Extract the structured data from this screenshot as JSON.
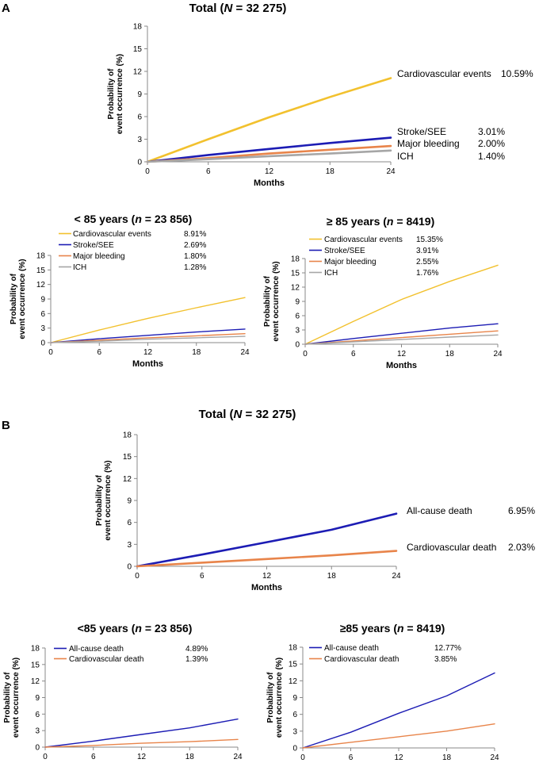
{
  "panel_labels": [
    "A",
    "B"
  ],
  "colors": {
    "cardiovascular_events": "#f2c12e",
    "stroke_see": "#1c1cb4",
    "major_bleeding": "#e8844a",
    "ich": "#a6a6a6",
    "all_cause_death": "#1c1cb4",
    "cardiovascular_death": "#e8844a"
  },
  "chart_data": [
    {
      "id": "A_total",
      "type": "line",
      "title": "Total (N = 32 275)",
      "title_parts": [
        "Total (",
        "N",
        " = 32 275)"
      ],
      "xlabel": "Months",
      "ylabel": [
        "Probability of",
        "event occurrence (%)"
      ],
      "xlim": [
        0,
        24
      ],
      "ylim": [
        0,
        18
      ],
      "xticks": [
        "0",
        "6",
        "12",
        "18",
        "24"
      ],
      "yticks": [
        "0",
        "3",
        "6",
        "9",
        "12",
        "15",
        "18"
      ],
      "series": [
        {
          "name": "Cardiovascular events",
          "value_label": "10.59%",
          "color_key": "cardiovascular_events",
          "x": [
            0,
            6,
            12,
            18,
            24
          ],
          "y": [
            0,
            3.0,
            5.9,
            8.6,
            11.1
          ]
        },
        {
          "name": "Stroke/SEE",
          "value_label": "3.01%",
          "color_key": "stroke_see",
          "x": [
            0,
            6,
            12,
            18,
            24
          ],
          "y": [
            0,
            0.9,
            1.7,
            2.5,
            3.2
          ]
        },
        {
          "name": "Major bleeding",
          "value_label": "2.00%",
          "color_key": "major_bleeding",
          "x": [
            0,
            6,
            12,
            18,
            24
          ],
          "y": [
            0,
            0.5,
            1.1,
            1.6,
            2.1
          ]
        },
        {
          "name": "ICH",
          "value_label": "1.40%",
          "color_key": "ich",
          "x": [
            0,
            6,
            12,
            18,
            24
          ],
          "y": [
            0,
            0.35,
            0.75,
            1.1,
            1.5
          ]
        }
      ]
    },
    {
      "id": "A_lt85",
      "type": "line",
      "title": "< 85 years (n = 23 856)",
      "title_parts": [
        "< 85 years (",
        "n",
        " = 23 856)"
      ],
      "xlabel": "Months",
      "ylabel": [
        "Probability of",
        "event occurrence (%)"
      ],
      "xlim": [
        0,
        24
      ],
      "ylim": [
        0,
        18
      ],
      "xticks": [
        "0",
        "6",
        "12",
        "18",
        "24"
      ],
      "yticks": [
        "0",
        "3",
        "6",
        "9",
        "12",
        "15",
        "18"
      ],
      "series": [
        {
          "name": "Cardiovascular events",
          "value_label": "8.91%",
          "color_key": "cardiovascular_events",
          "x": [
            0,
            6,
            12,
            18,
            24
          ],
          "y": [
            0,
            2.6,
            5.0,
            7.2,
            9.3
          ]
        },
        {
          "name": "Stroke/SEE",
          "value_label": "2.69%",
          "color_key": "stroke_see",
          "x": [
            0,
            6,
            12,
            18,
            24
          ],
          "y": [
            0,
            0.8,
            1.5,
            2.2,
            2.8
          ]
        },
        {
          "name": "Major bleeding",
          "value_label": "1.80%",
          "color_key": "major_bleeding",
          "x": [
            0,
            6,
            12,
            18,
            24
          ],
          "y": [
            0,
            0.5,
            1.0,
            1.4,
            1.85
          ]
        },
        {
          "name": "ICH",
          "value_label": "1.28%",
          "color_key": "ich",
          "x": [
            0,
            6,
            12,
            18,
            24
          ],
          "y": [
            0,
            0.3,
            0.7,
            1.0,
            1.3
          ]
        }
      ]
    },
    {
      "id": "A_ge85",
      "type": "line",
      "title": "≥ 85 years (n = 8419)",
      "title_parts": [
        "≥ 85 years (",
        "n",
        " = 8419)"
      ],
      "xlabel": "Months",
      "ylabel": [
        "Probability of",
        "event occurrence (%)"
      ],
      "xlim": [
        0,
        24
      ],
      "ylim": [
        0,
        18
      ],
      "xticks": [
        "0",
        "6",
        "12",
        "18",
        "24"
      ],
      "yticks": [
        "0",
        "3",
        "6",
        "9",
        "12",
        "15",
        "18"
      ],
      "series": [
        {
          "name": "Cardiovascular events",
          "value_label": "15.35%",
          "color_key": "cardiovascular_events",
          "x": [
            0,
            6,
            12,
            18,
            24
          ],
          "y": [
            0,
            4.8,
            9.4,
            13.2,
            16.6
          ]
        },
        {
          "name": "Stroke/SEE",
          "value_label": "3.91%",
          "color_key": "stroke_see",
          "x": [
            0,
            6,
            12,
            18,
            24
          ],
          "y": [
            0,
            1.2,
            2.3,
            3.4,
            4.3
          ]
        },
        {
          "name": "Major bleeding",
          "value_label": "2.55%",
          "color_key": "major_bleeding",
          "x": [
            0,
            6,
            12,
            18,
            24
          ],
          "y": [
            0,
            0.7,
            1.4,
            2.1,
            2.8
          ]
        },
        {
          "name": "ICH",
          "value_label": "1.76%",
          "color_key": "ich",
          "x": [
            0,
            6,
            12,
            18,
            24
          ],
          "y": [
            0,
            0.5,
            1.0,
            1.5,
            1.95
          ]
        }
      ]
    },
    {
      "id": "B_total",
      "type": "line",
      "title": "Total (N = 32 275)",
      "title_parts": [
        "Total (",
        "N",
        " = 32 275)"
      ],
      "xlabel": "Months",
      "ylabel": [
        "Probability of",
        "event occurrence (%)"
      ],
      "xlim": [
        0,
        24
      ],
      "ylim": [
        0,
        18
      ],
      "xticks": [
        "0",
        "6",
        "12",
        "18",
        "24"
      ],
      "yticks": [
        "0",
        "3",
        "6",
        "9",
        "12",
        "15",
        "18"
      ],
      "series": [
        {
          "name": "All-cause death",
          "value_label": "6.95%",
          "color_key": "all_cause_death",
          "x": [
            0,
            6,
            12,
            18,
            24
          ],
          "y": [
            0,
            1.6,
            3.3,
            5.0,
            7.2
          ]
        },
        {
          "name": "Cardiovascular death",
          "value_label": "2.03%",
          "color_key": "cardiovascular_death",
          "x": [
            0,
            6,
            12,
            18,
            24
          ],
          "y": [
            0,
            0.5,
            1.0,
            1.5,
            2.1
          ]
        }
      ]
    },
    {
      "id": "B_lt85",
      "type": "line",
      "title": "<85 years (n = 23 856)",
      "title_parts": [
        "<85 years (",
        "n",
        " = 23 856)"
      ],
      "xlabel": "Months",
      "ylabel": [
        "Probability of",
        "event occurrence (%)"
      ],
      "xlim": [
        0,
        24
      ],
      "ylim": [
        0,
        18
      ],
      "xticks": [
        "0",
        "6",
        "12",
        "18",
        "24"
      ],
      "yticks": [
        "0",
        "3",
        "6",
        "9",
        "12",
        "15",
        "18"
      ],
      "series": [
        {
          "name": "All-cause death",
          "value_label": "4.89%",
          "color_key": "all_cause_death",
          "x": [
            0,
            6,
            12,
            18,
            24
          ],
          "y": [
            0,
            1.1,
            2.3,
            3.5,
            5.1
          ]
        },
        {
          "name": "Cardiovascular death",
          "value_label": "1.39%",
          "color_key": "cardiovascular_death",
          "x": [
            0,
            6,
            12,
            18,
            24
          ],
          "y": [
            0,
            0.3,
            0.7,
            1.0,
            1.4
          ]
        }
      ]
    },
    {
      "id": "B_ge85",
      "type": "line",
      "title": "≥85 years (n = 8419)",
      "title_parts": [
        "≥85 years (",
        "n",
        " = 8419)"
      ],
      "xlabel": "Months",
      "ylabel": [
        "Probability of",
        "event occurrence (%)"
      ],
      "xlim": [
        0,
        24
      ],
      "ylim": [
        0,
        18
      ],
      "xticks": [
        "0",
        "6",
        "12",
        "18",
        "24"
      ],
      "yticks": [
        "0",
        "3",
        "6",
        "9",
        "12",
        "15",
        "18"
      ],
      "series": [
        {
          "name": "All-cause death",
          "value_label": "12.77%",
          "color_key": "all_cause_death",
          "x": [
            0,
            6,
            12,
            18,
            24
          ],
          "y": [
            0,
            2.8,
            6.2,
            9.3,
            13.4
          ]
        },
        {
          "name": "Cardiovascular death",
          "value_label": "3.85%",
          "color_key": "cardiovascular_death",
          "x": [
            0,
            6,
            12,
            18,
            24
          ],
          "y": [
            0,
            1.0,
            2.0,
            3.0,
            4.3
          ]
        }
      ]
    }
  ]
}
